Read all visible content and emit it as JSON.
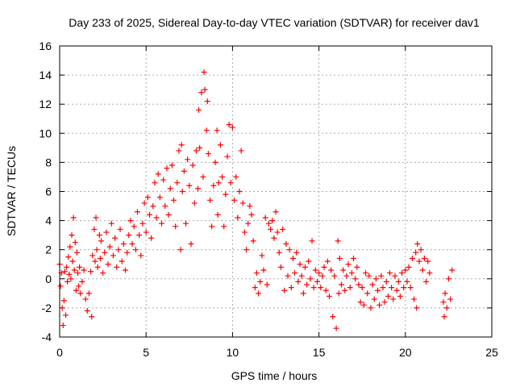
{
  "chart_data": {
    "type": "scatter",
    "title": "Day 233 of 2025, Sidereal Day-to-day VTEC variation (SDTVAR) for receiver dav1",
    "xlabel": "GPS time / hours",
    "ylabel": "SDTVAR / TECUs",
    "xlim": [
      0,
      25
    ],
    "ylim": [
      -4,
      16
    ],
    "xticks": [
      0,
      5,
      10,
      15,
      20,
      25
    ],
    "yticks": [
      -4,
      -2,
      0,
      2,
      4,
      6,
      8,
      10,
      12,
      14,
      16
    ],
    "grid": true,
    "marker": "+",
    "color": "#ff0000",
    "series": [
      {
        "name": "dav1",
        "points": [
          [
            0.0,
            1.0
          ],
          [
            0.05,
            -0.5
          ],
          [
            0.1,
            0.4
          ],
          [
            0.15,
            -2.0
          ],
          [
            0.2,
            -3.2
          ],
          [
            0.25,
            -1.5
          ],
          [
            0.3,
            0.5
          ],
          [
            0.35,
            -2.5
          ],
          [
            0.4,
            0.8
          ],
          [
            0.45,
            -0.2
          ],
          [
            0.5,
            1.5
          ],
          [
            0.55,
            0.3
          ],
          [
            0.6,
            2.2
          ],
          [
            0.65,
            0.0
          ],
          [
            0.7,
            3.0
          ],
          [
            0.75,
            1.2
          ],
          [
            0.8,
            4.2
          ],
          [
            0.85,
            0.6
          ],
          [
            0.9,
            2.5
          ],
          [
            0.95,
            -0.8
          ],
          [
            1.0,
            1.8
          ],
          [
            1.05,
            0.4
          ],
          [
            1.1,
            -0.5
          ],
          [
            1.15,
            0.8
          ],
          [
            1.2,
            -1.0
          ],
          [
            1.3,
            -0.2
          ],
          [
            1.4,
            0.6
          ],
          [
            1.5,
            -1.4
          ],
          [
            1.6,
            -2.2
          ],
          [
            1.7,
            -1.0
          ],
          [
            1.8,
            0.5
          ],
          [
            1.85,
            -2.6
          ],
          [
            1.9,
            1.6
          ],
          [
            2.0,
            3.4
          ],
          [
            2.05,
            1.2
          ],
          [
            2.1,
            4.2
          ],
          [
            2.15,
            2.0
          ],
          [
            2.2,
            0.8
          ],
          [
            2.3,
            3.0
          ],
          [
            2.35,
            1.4
          ],
          [
            2.4,
            2.6
          ],
          [
            2.5,
            0.4
          ],
          [
            2.6,
            1.8
          ],
          [
            2.7,
            3.2
          ],
          [
            2.8,
            1.0
          ],
          [
            2.9,
            2.2
          ],
          [
            3.0,
            3.8
          ],
          [
            3.1,
            1.6
          ],
          [
            3.2,
            2.8
          ],
          [
            3.3,
            0.8
          ],
          [
            3.4,
            2.0
          ],
          [
            3.5,
            3.4
          ],
          [
            3.6,
            1.2
          ],
          [
            3.7,
            2.4
          ],
          [
            3.8,
            0.6
          ],
          [
            3.9,
            1.8
          ],
          [
            4.0,
            3.0
          ],
          [
            4.1,
            4.0
          ],
          [
            4.2,
            2.4
          ],
          [
            4.3,
            3.6
          ],
          [
            4.4,
            2.0
          ],
          [
            4.5,
            4.6
          ],
          [
            4.6,
            3.0
          ],
          [
            4.7,
            1.6
          ],
          [
            4.8,
            3.8
          ],
          [
            4.9,
            5.2
          ],
          [
            5.0,
            3.2
          ],
          [
            5.1,
            5.6
          ],
          [
            5.2,
            4.4
          ],
          [
            5.3,
            2.8
          ],
          [
            5.4,
            5.0
          ],
          [
            5.5,
            6.6
          ],
          [
            5.6,
            4.2
          ],
          [
            5.7,
            7.2
          ],
          [
            5.8,
            5.6
          ],
          [
            5.9,
            3.8
          ],
          [
            6.0,
            6.8
          ],
          [
            6.1,
            5.0
          ],
          [
            6.2,
            7.6
          ],
          [
            6.3,
            4.4
          ],
          [
            6.4,
            6.2
          ],
          [
            6.5,
            7.8
          ],
          [
            6.6,
            5.4
          ],
          [
            6.7,
            3.6
          ],
          [
            6.8,
            6.6
          ],
          [
            6.9,
            8.8
          ],
          [
            7.0,
            2.0
          ],
          [
            7.05,
            9.2
          ],
          [
            7.1,
            6.0
          ],
          [
            7.2,
            7.4
          ],
          [
            7.3,
            3.8
          ],
          [
            7.4,
            8.2
          ],
          [
            7.5,
            6.4
          ],
          [
            7.6,
            2.4
          ],
          [
            7.7,
            7.8
          ],
          [
            7.8,
            5.2
          ],
          [
            7.9,
            8.8
          ],
          [
            8.0,
            6.2
          ],
          [
            8.05,
            11.6
          ],
          [
            8.1,
            9.0
          ],
          [
            8.2,
            12.8
          ],
          [
            8.3,
            7.0
          ],
          [
            8.35,
            14.2
          ],
          [
            8.4,
            13.0
          ],
          [
            8.5,
            10.2
          ],
          [
            8.55,
            12.2
          ],
          [
            8.6,
            8.6
          ],
          [
            8.7,
            5.4
          ],
          [
            8.8,
            3.6
          ],
          [
            8.9,
            6.4
          ],
          [
            9.0,
            8.0
          ],
          [
            9.1,
            10.2
          ],
          [
            9.15,
            4.4
          ],
          [
            9.2,
            6.6
          ],
          [
            9.3,
            9.2
          ],
          [
            9.4,
            7.0
          ],
          [
            9.5,
            3.6
          ],
          [
            9.6,
            5.8
          ],
          [
            9.7,
            8.4
          ],
          [
            9.8,
            10.6
          ],
          [
            9.9,
            6.6
          ],
          [
            10.0,
            10.4
          ],
          [
            10.1,
            5.4
          ],
          [
            10.2,
            7.0
          ],
          [
            10.3,
            4.2
          ],
          [
            10.4,
            6.0
          ],
          [
            10.5,
            8.8
          ],
          [
            10.6,
            5.2
          ],
          [
            10.7,
            3.2
          ],
          [
            10.8,
            2.0
          ],
          [
            10.9,
            3.8
          ],
          [
            11.0,
            5.0
          ],
          [
            11.1,
            4.4
          ],
          [
            11.2,
            2.6
          ],
          [
            11.3,
            -0.6
          ],
          [
            11.4,
            0.4
          ],
          [
            11.5,
            -1.0
          ],
          [
            11.6,
            -0.2
          ],
          [
            11.7,
            1.6
          ],
          [
            11.8,
            0.6
          ],
          [
            11.9,
            4.2
          ],
          [
            12.0,
            -0.4
          ],
          [
            12.1,
            3.8
          ],
          [
            12.2,
            3.4
          ],
          [
            12.3,
            4.0
          ],
          [
            12.4,
            2.8
          ],
          [
            12.5,
            4.6
          ],
          [
            12.6,
            3.2
          ],
          [
            12.7,
            1.8
          ],
          [
            12.8,
            0.8
          ],
          [
            12.9,
            3.4
          ],
          [
            13.0,
            -0.8
          ],
          [
            13.1,
            2.4
          ],
          [
            13.2,
            0.2
          ],
          [
            13.3,
            2.0
          ],
          [
            13.4,
            -0.6
          ],
          [
            13.5,
            1.4
          ],
          [
            13.6,
            0.4
          ],
          [
            13.7,
            1.8
          ],
          [
            13.8,
            -0.2
          ],
          [
            13.9,
            1.0
          ],
          [
            14.0,
            0.2
          ],
          [
            14.1,
            -1.0
          ],
          [
            14.2,
            0.8
          ],
          [
            14.3,
            -0.4
          ],
          [
            14.4,
            1.2
          ],
          [
            14.5,
            0.0
          ],
          [
            14.6,
            2.6
          ],
          [
            14.7,
            -0.6
          ],
          [
            14.8,
            0.6
          ],
          [
            14.9,
            -0.2
          ],
          [
            15.0,
            0.4
          ],
          [
            15.1,
            -0.6
          ],
          [
            15.2,
            0.2
          ],
          [
            15.3,
            0.8
          ],
          [
            15.4,
            -0.8
          ],
          [
            15.5,
            1.2
          ],
          [
            15.6,
            -1.2
          ],
          [
            15.7,
            0.6
          ],
          [
            15.8,
            -2.6
          ],
          [
            15.9,
            0.2
          ],
          [
            16.0,
            -3.4
          ],
          [
            16.1,
            2.6
          ],
          [
            16.15,
            -1.0
          ],
          [
            16.2,
            1.4
          ],
          [
            16.3,
            -0.4
          ],
          [
            16.4,
            0.6
          ],
          [
            16.5,
            -0.8
          ],
          [
            16.6,
            0.2
          ],
          [
            16.7,
            1.0
          ],
          [
            16.8,
            -0.6
          ],
          [
            16.9,
            0.4
          ],
          [
            17.0,
            1.4
          ],
          [
            17.1,
            0.0
          ],
          [
            17.2,
            0.8
          ],
          [
            17.3,
            -0.4
          ],
          [
            17.4,
            -1.6
          ],
          [
            17.5,
            -0.6
          ],
          [
            17.6,
            -1.8
          ],
          [
            17.7,
            0.4
          ],
          [
            17.8,
            -1.0
          ],
          [
            17.9,
            0.2
          ],
          [
            18.0,
            -2.0
          ],
          [
            18.1,
            -0.4
          ],
          [
            18.2,
            -1.4
          ],
          [
            18.3,
            0.0
          ],
          [
            18.4,
            -0.8
          ],
          [
            18.5,
            -1.8
          ],
          [
            18.6,
            0.2
          ],
          [
            18.7,
            -0.6
          ],
          [
            18.8,
            -1.6
          ],
          [
            18.9,
            -0.2
          ],
          [
            19.0,
            -1.2
          ],
          [
            19.1,
            0.4
          ],
          [
            19.2,
            -0.6
          ],
          [
            19.3,
            -1.4
          ],
          [
            19.4,
            0.2
          ],
          [
            19.5,
            -0.8
          ],
          [
            19.6,
            -0.2
          ],
          [
            19.7,
            -1.2
          ],
          [
            19.8,
            0.4
          ],
          [
            19.9,
            -0.6
          ],
          [
            20.0,
            0.6
          ],
          [
            20.1,
            -0.2
          ],
          [
            20.2,
            0.8
          ],
          [
            20.3,
            -0.6
          ],
          [
            20.4,
            1.4
          ],
          [
            20.5,
            -1.4
          ],
          [
            20.6,
            1.8
          ],
          [
            20.65,
            -2.0
          ],
          [
            20.7,
            2.4
          ],
          [
            20.8,
            1.2
          ],
          [
            20.9,
            2.0
          ],
          [
            21.0,
            0.6
          ],
          [
            21.1,
            1.4
          ],
          [
            21.2,
            -0.2
          ],
          [
            21.3,
            1.2
          ],
          [
            21.4,
            0.4
          ],
          [
            22.2,
            -1.6
          ],
          [
            22.25,
            -2.6
          ],
          [
            22.3,
            -1.0
          ],
          [
            22.4,
            -2.0
          ],
          [
            22.5,
            0.0
          ],
          [
            22.6,
            -1.4
          ],
          [
            22.7,
            0.6
          ]
        ]
      }
    ]
  }
}
